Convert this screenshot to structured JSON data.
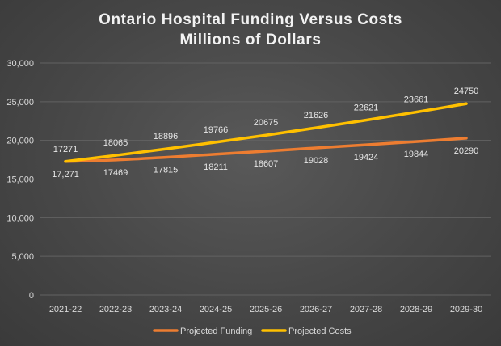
{
  "chart_data": {
    "type": "line",
    "title": "Ontario Hospital Funding Versus Costs",
    "subtitle": "Millions of Dollars",
    "xlabel": "",
    "ylabel": "",
    "ylim": [
      0,
      30000
    ],
    "yticks": [
      0,
      5000,
      10000,
      15000,
      20000,
      25000,
      30000
    ],
    "ytick_labels": [
      "0",
      "5,000",
      "10,000",
      "15,000",
      "20,000",
      "25,000",
      "30,000"
    ],
    "grid": true,
    "legend_position": "bottom",
    "categories": [
      "2021-22",
      "2022-23",
      "2023-24",
      "2024-25",
      "2025-26",
      "2026-27",
      "2027-28",
      "2028-29",
      "2029-30"
    ],
    "series": [
      {
        "name": "Projected Funding",
        "color": "#ed7d31",
        "values": [
          17271,
          17469,
          17815,
          18211,
          18607,
          19028,
          19424,
          19844,
          20290
        ],
        "data_labels": [
          "17,271",
          "17469",
          "17815",
          "18211",
          "18607",
          "19028",
          "19424",
          "19844",
          "20290"
        ],
        "label_position": "below"
      },
      {
        "name": "Projected Costs",
        "color": "#ffc000",
        "values": [
          17271,
          18065,
          18896,
          19766,
          20675,
          21626,
          22621,
          23661,
          24750
        ],
        "data_labels": [
          "17271",
          "18065",
          "18896",
          "19766",
          "20675",
          "21626",
          "22621",
          "23661",
          "24750"
        ],
        "label_position": "above"
      }
    ]
  }
}
